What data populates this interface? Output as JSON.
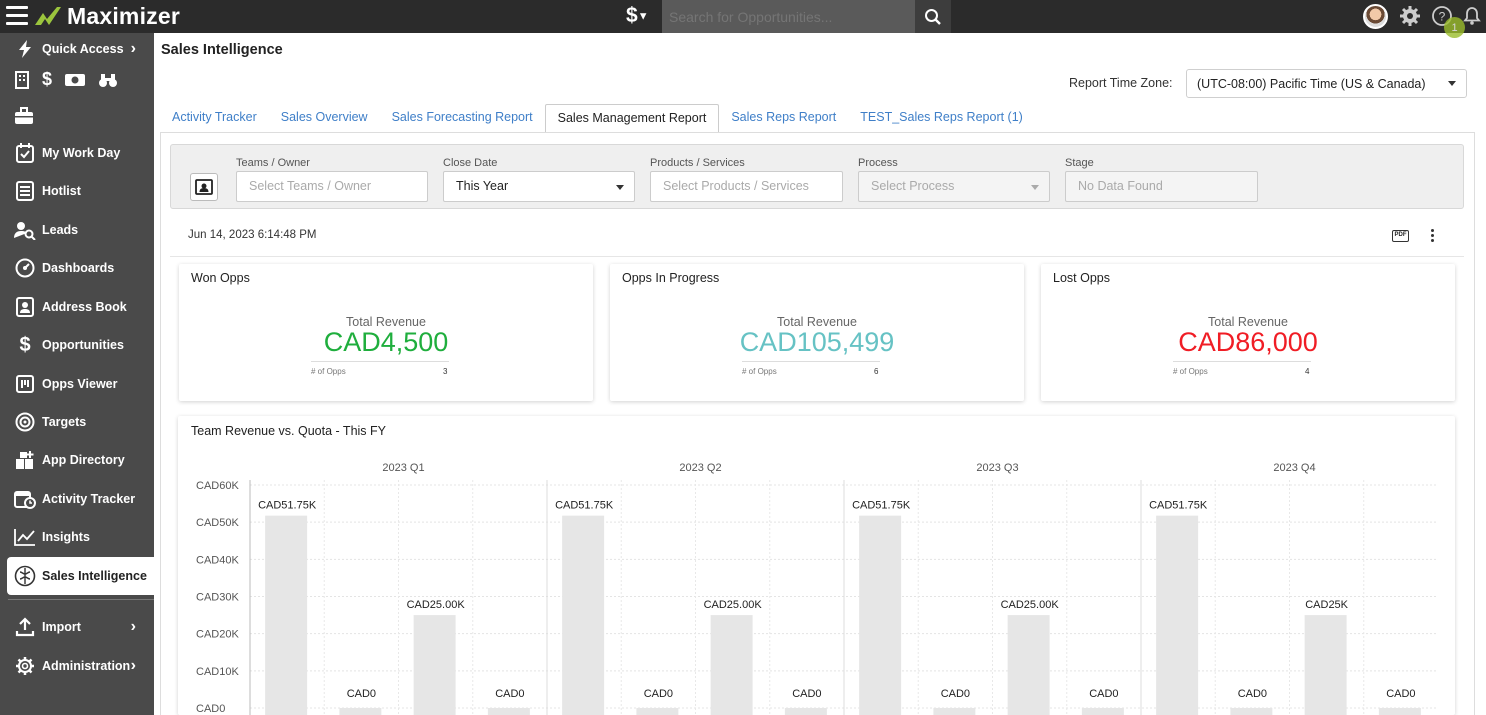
{
  "app": {
    "name": "Maximizer"
  },
  "topbar": {
    "currency_symbol": "$",
    "search_placeholder": "Search for Opportunities...",
    "notification_count": "1"
  },
  "sidebar": {
    "quick_access": "Quick Access",
    "items": [
      {
        "label": "My Work Day",
        "icon": "calendar-check-icon"
      },
      {
        "label": "Hotlist",
        "icon": "list-icon"
      },
      {
        "label": "Leads",
        "icon": "person-search-icon"
      },
      {
        "label": "Dashboards",
        "icon": "gauge-icon"
      },
      {
        "label": "Address Book",
        "icon": "contact-card-icon"
      },
      {
        "label": "Opportunities",
        "icon": "dollar-icon"
      },
      {
        "label": "Opps Viewer",
        "icon": "viewer-icon"
      },
      {
        "label": "Targets",
        "icon": "target-icon"
      },
      {
        "label": "App Directory",
        "icon": "apps-icon"
      },
      {
        "label": "Activity Tracker",
        "icon": "calendar-clock-icon"
      },
      {
        "label": "Insights",
        "icon": "line-chart-icon"
      },
      {
        "label": "Sales Intelligence",
        "icon": "brain-icon"
      },
      {
        "label": "Import",
        "icon": "upload-icon"
      },
      {
        "label": "Administration",
        "icon": "gear-icon"
      }
    ]
  },
  "page": {
    "title": "Sales Intelligence",
    "timezone_label": "Report Time Zone:",
    "timezone_value": "(UTC-08:00) Pacific Time (US & Canada)",
    "tabs": [
      "Activity Tracker",
      "Sales Overview",
      "Sales Forecasting Report",
      "Sales Management Report",
      "Sales Reps Report",
      "TEST_Sales Reps Report (1)"
    ],
    "active_tab": "Sales Management Report"
  },
  "filters": {
    "teams_label": "Teams / Owner",
    "teams_placeholder": "Select Teams / Owner",
    "close_date_label": "Close Date",
    "close_date_value": "This Year",
    "products_label": "Products / Services",
    "products_placeholder": "Select Products / Services",
    "process_label": "Process",
    "process_placeholder": "Select Process",
    "stage_label": "Stage",
    "stage_placeholder": "No Data Found"
  },
  "report": {
    "timestamp": "Jun 14, 2023 6:14:48 PM",
    "pdf_label": "PDF"
  },
  "cards": [
    {
      "title": "Won Opps",
      "sub": "Total Revenue",
      "value": "CAD4,500",
      "opps_label": "# of Opps",
      "count": "3",
      "color": "#1fae3d"
    },
    {
      "title": "Opps In Progress",
      "sub": "Total Revenue",
      "value": "CAD105,499",
      "opps_label": "# of Opps",
      "count": "6",
      "color": "#66c2c4"
    },
    {
      "title": "Lost Opps",
      "sub": "Total Revenue",
      "value": "CAD86,000",
      "opps_label": "# of Opps",
      "count": "4",
      "color": "#f01d25"
    }
  ],
  "chart_data": {
    "type": "bar",
    "title": "Team Revenue vs. Quota - This FY",
    "y_ticks": [
      "CAD60K",
      "CAD50K",
      "CAD40K",
      "CAD30K",
      "CAD20K",
      "CAD10K",
      "CAD0"
    ],
    "ylim": [
      0,
      60000
    ],
    "groups": [
      {
        "label": "2023 Q1",
        "bars": [
          {
            "value": 51750,
            "label": "CAD51.75K"
          },
          {
            "value": 0,
            "label": "CAD0"
          },
          {
            "value": 25000,
            "label": "CAD25.00K"
          },
          {
            "value": 0,
            "label": "CAD0"
          }
        ]
      },
      {
        "label": "2023 Q2",
        "bars": [
          {
            "value": 51750,
            "label": "CAD51.75K"
          },
          {
            "value": 0,
            "label": "CAD0"
          },
          {
            "value": 25000,
            "label": "CAD25.00K"
          },
          {
            "value": 0,
            "label": "CAD0"
          }
        ]
      },
      {
        "label": "2023 Q3",
        "bars": [
          {
            "value": 51750,
            "label": "CAD51.75K"
          },
          {
            "value": 0,
            "label": "CAD0"
          },
          {
            "value": 25000,
            "label": "CAD25.00K"
          },
          {
            "value": 0,
            "label": "CAD0"
          }
        ]
      },
      {
        "label": "2023 Q4",
        "bars": [
          {
            "value": 51750,
            "label": "CAD51.75K"
          },
          {
            "value": 0,
            "label": "CAD0"
          },
          {
            "value": 25000,
            "label": "CAD25K"
          },
          {
            "value": 0,
            "label": "CAD0"
          }
        ]
      }
    ]
  }
}
